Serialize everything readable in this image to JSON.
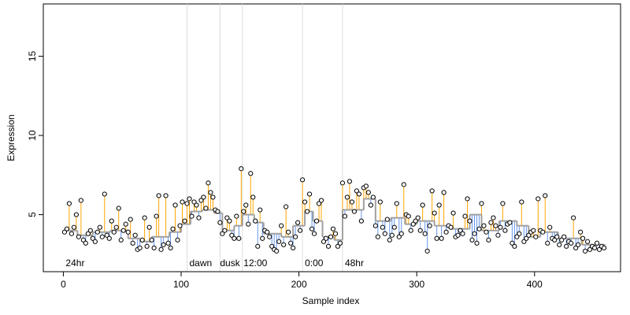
{
  "chart_data": {
    "type": "scatter",
    "xlabel": "Sample index",
    "ylabel": "Expression",
    "xlim": [
      -17,
      473
    ],
    "ylim": [
      1.4,
      18.3
    ],
    "xticks": [
      0,
      100,
      200,
      300,
      400
    ],
    "yticks": [
      5,
      10,
      15
    ],
    "above_color": "#ffa500",
    "below_color": "#6495ed",
    "fit_color": "#a0a0a0",
    "vline_color": "#dddddd",
    "annotation_color": "#aaaaaa",
    "vlines": [
      105,
      133,
      152,
      203,
      237
    ],
    "annotations": [
      {
        "x": 2,
        "text": "24hr"
      },
      {
        "x": 107,
        "text": "dawn"
      },
      {
        "x": 133,
        "text": "dusk"
      },
      {
        "x": 153,
        "text": "12:00"
      },
      {
        "x": 205,
        "text": "0:00"
      },
      {
        "x": 239,
        "text": "48hr"
      }
    ],
    "fit": [
      {
        "start": 1,
        "end": 12,
        "level": 4.0
      },
      {
        "start": 12,
        "end": 25,
        "level": 3.7
      },
      {
        "start": 25,
        "end": 40,
        "level": 3.9
      },
      {
        "start": 40,
        "end": 55,
        "level": 4.0
      },
      {
        "start": 55,
        "end": 65,
        "level": 3.5
      },
      {
        "start": 65,
        "end": 75,
        "level": 3.3
      },
      {
        "start": 75,
        "end": 90,
        "level": 3.6
      },
      {
        "start": 90,
        "end": 100,
        "level": 3.9
      },
      {
        "start": 100,
        "end": 108,
        "level": 4.4
      },
      {
        "start": 108,
        "end": 118,
        "level": 5.2
      },
      {
        "start": 118,
        "end": 128,
        "level": 5.3
      },
      {
        "start": 128,
        "end": 135,
        "level": 5.1
      },
      {
        "start": 135,
        "end": 145,
        "level": 4.0
      },
      {
        "start": 145,
        "end": 152,
        "level": 4.3
      },
      {
        "start": 152,
        "end": 162,
        "level": 5.0
      },
      {
        "start": 162,
        "end": 170,
        "level": 4.5
      },
      {
        "start": 170,
        "end": 185,
        "level": 3.8
      },
      {
        "start": 185,
        "end": 195,
        "level": 3.6
      },
      {
        "start": 195,
        "end": 205,
        "level": 4.3
      },
      {
        "start": 205,
        "end": 212,
        "level": 5.2
      },
      {
        "start": 212,
        "end": 220,
        "level": 4.6
      },
      {
        "start": 220,
        "end": 230,
        "level": 3.6
      },
      {
        "start": 230,
        "end": 237,
        "level": 3.4
      },
      {
        "start": 237,
        "end": 255,
        "level": 5.3
      },
      {
        "start": 255,
        "end": 265,
        "level": 6.0
      },
      {
        "start": 265,
        "end": 278,
        "level": 4.6
      },
      {
        "start": 278,
        "end": 290,
        "level": 4.8
      },
      {
        "start": 290,
        "end": 300,
        "level": 4.4
      },
      {
        "start": 300,
        "end": 315,
        "level": 4.6
      },
      {
        "start": 315,
        "end": 330,
        "level": 4.3
      },
      {
        "start": 330,
        "end": 345,
        "level": 4.1
      },
      {
        "start": 345,
        "end": 355,
        "level": 5.0
      },
      {
        "start": 355,
        "end": 370,
        "level": 4.0
      },
      {
        "start": 370,
        "end": 385,
        "level": 4.6
      },
      {
        "start": 385,
        "end": 395,
        "level": 4.3
      },
      {
        "start": 395,
        "end": 405,
        "level": 3.6
      },
      {
        "start": 405,
        "end": 420,
        "level": 3.9
      },
      {
        "start": 420,
        "end": 440,
        "level": 3.5
      },
      {
        "start": 440,
        "end": 460,
        "level": 3.1
      }
    ],
    "x": [
      1,
      3,
      5,
      7,
      9,
      11,
      13,
      15,
      17,
      19,
      21,
      23,
      25,
      27,
      29,
      31,
      33,
      35,
      37,
      39,
      41,
      43,
      45,
      47,
      49,
      51,
      53,
      55,
      57,
      59,
      61,
      63,
      65,
      67,
      69,
      71,
      73,
      75,
      77,
      79,
      81,
      83,
      85,
      87,
      89,
      91,
      93,
      95,
      97,
      99,
      101,
      103,
      105,
      107,
      109,
      111,
      113,
      115,
      117,
      119,
      121,
      123,
      125,
      127,
      129,
      131,
      133,
      135,
      137,
      139,
      141,
      143,
      145,
      147,
      149,
      151,
      153,
      155,
      157,
      159,
      161,
      163,
      165,
      167,
      169,
      171,
      173,
      175,
      177,
      179,
      181,
      183,
      185,
      187,
      189,
      191,
      193,
      195,
      197,
      199,
      201,
      203,
      205,
      207,
      209,
      211,
      213,
      215,
      217,
      219,
      221,
      223,
      225,
      227,
      229,
      231,
      233,
      235,
      237,
      239,
      241,
      243,
      245,
      247,
      249,
      251,
      253,
      255,
      257,
      259,
      261,
      263,
      265,
      267,
      269,
      271,
      273,
      275,
      277,
      279,
      281,
      283,
      285,
      287,
      289,
      291,
      293,
      295,
      297,
      299,
      301,
      303,
      305,
      307,
      309,
      311,
      313,
      315,
      317,
      319,
      321,
      323,
      325,
      327,
      329,
      331,
      333,
      335,
      337,
      339,
      341,
      343,
      345,
      347,
      349,
      351,
      353,
      355,
      357,
      359,
      361,
      363,
      365,
      367,
      369,
      371,
      373,
      375,
      377,
      379,
      381,
      383,
      385,
      387,
      389,
      391,
      393,
      395,
      397,
      399,
      401,
      403,
      405,
      407,
      409,
      411,
      413,
      415,
      417,
      419,
      421,
      423,
      425,
      427,
      429,
      431,
      433,
      435,
      437,
      439,
      441,
      443,
      445,
      447,
      449,
      451,
      453,
      455,
      457,
      459
    ],
    "values": [
      3.9,
      4.1,
      5.7,
      3.8,
      4.2,
      5.0,
      3.6,
      5.9,
      3.4,
      3.2,
      3.8,
      4.0,
      3.5,
      3.3,
      3.9,
      4.2,
      3.6,
      6.3,
      3.7,
      3.5,
      4.6,
      3.9,
      4.2,
      5.4,
      3.4,
      4.0,
      4.4,
      3.9,
      4.7,
      3.2,
      3.7,
      2.8,
      2.9,
      3.4,
      4.8,
      3.0,
      4.2,
      3.4,
      2.9,
      4.9,
      6.2,
      2.8,
      3.1,
      6.2,
      3.2,
      2.9,
      4.1,
      5.6,
      3.4,
      4.3,
      5.8,
      4.6,
      5.7,
      6.0,
      4.9,
      5.8,
      5.6,
      4.8,
      5.9,
      6.1,
      5.4,
      7.0,
      6.4,
      6.1,
      5.3,
      5.2,
      4.5,
      3.8,
      4.0,
      4.8,
      4.6,
      3.7,
      3.5,
      4.9,
      3.5,
      7.9,
      5.2,
      5.6,
      4.4,
      7.6,
      6.1,
      4.6,
      3.0,
      5.3,
      3.5,
      4.0,
      3.9,
      3.6,
      3.0,
      2.8,
      2.7,
      3.3,
      4.3,
      3.1,
      5.5,
      3.9,
      3.2,
      2.9,
      3.6,
      4.5,
      4.0,
      7.2,
      5.8,
      5.2,
      6.3,
      4.1,
      3.8,
      4.6,
      5.7,
      5.9,
      3.3,
      3.5,
      3.0,
      3.6,
      4.1,
      3.8,
      3.0,
      3.2,
      7.0,
      4.9,
      6.1,
      7.1,
      5.8,
      5.2,
      6.5,
      6.3,
      4.6,
      6.7,
      6.8,
      6.4,
      5.6,
      6.1,
      4.3,
      3.6,
      5.8,
      4.2,
      3.8,
      4.7,
      3.4,
      3.7,
      4.2,
      5.7,
      3.6,
      3.8,
      6.9,
      5.0,
      4.9,
      4.0,
      4.4,
      4.6,
      4.8,
      4.0,
      5.6,
      3.8,
      2.7,
      4.3,
      6.5,
      5.1,
      3.5,
      5.6,
      3.5,
      6.4,
      3.9,
      4.3,
      4.2,
      5.1,
      3.6,
      3.7,
      4.0,
      3.8,
      4.9,
      6.0,
      4.6,
      3.4,
      3.8,
      3.2,
      4.1,
      5.7,
      4.3,
      3.9,
      3.4,
      4.5,
      4.8,
      4.3,
      3.7,
      4.2,
      5.7,
      4.0,
      4.4,
      4.5,
      3.2,
      3.0,
      3.6,
      3.8,
      5.8,
      3.3,
      3.5,
      3.7,
      3.9,
      4.0,
      3.6,
      6.0,
      4.0,
      3.9,
      6.2,
      3.2,
      4.2,
      3.5,
      3.4,
      3.6,
      3.1,
      3.4,
      3.6,
      3.0,
      3.3,
      3.2,
      4.8,
      2.9,
      3.1,
      3.9,
      3.5,
      2.7,
      3.3,
      2.8,
      3.0,
      2.9,
      3.2,
      2.8,
      3.0,
      2.9
    ]
  }
}
